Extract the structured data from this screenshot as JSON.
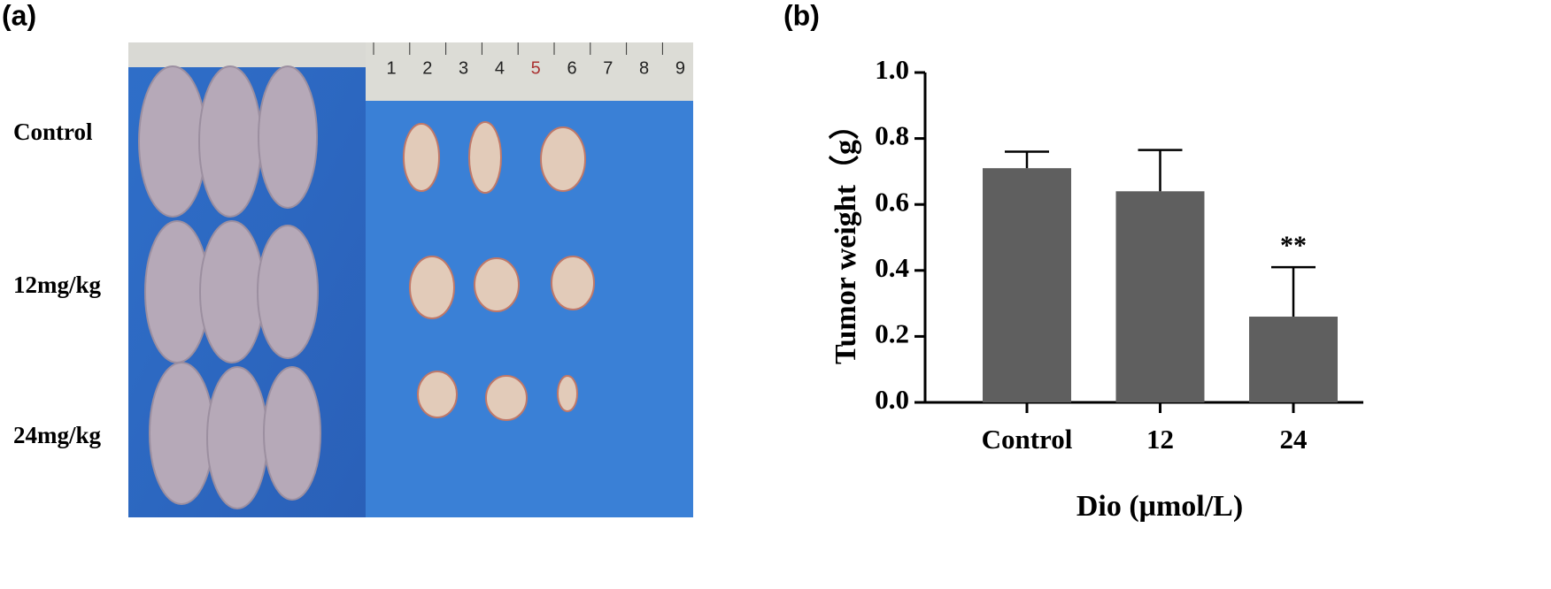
{
  "panel_a": {
    "label": "(a)",
    "row_labels": [
      "Control",
      "12mg/kg",
      "24mg/kg"
    ],
    "ruler_labels": [
      "1",
      "2",
      "3",
      "4",
      "5",
      "6",
      "7",
      "8",
      "9"
    ]
  },
  "chart_data": {
    "type": "bar",
    "panel_label": "(b)",
    "categories": [
      "Control",
      "12",
      "24"
    ],
    "values": [
      0.71,
      0.64,
      0.26
    ],
    "errors": [
      0.05,
      0.125,
      0.15
    ],
    "annotations": [
      null,
      null,
      "**"
    ],
    "color": "#5f5f5f",
    "ylim": [
      0,
      1.0
    ],
    "yticks": [
      {
        "value": 0,
        "label": "0.0"
      },
      {
        "value": 0.2,
        "label": "0.2"
      },
      {
        "value": 0.4,
        "label": "0.4"
      },
      {
        "value": 0.6,
        "label": "0.6"
      },
      {
        "value": 0.8,
        "label": "0.8"
      },
      {
        "value": 1.0,
        "label": "1.0"
      }
    ],
    "y_label": "Tumor weight（g）",
    "x_label": "Dio (μmol/L)"
  }
}
